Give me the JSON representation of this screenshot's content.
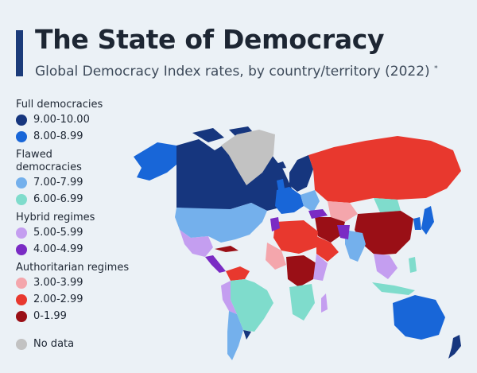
{
  "header": {
    "title": "The State of Democracy",
    "subtitle": "Global Democracy Index rates, by country/territory (2022)",
    "footnote_mark": "*"
  },
  "legend": {
    "groups": [
      {
        "title": "Full democracies",
        "items": [
          {
            "label": "9.00-10.00",
            "color": "#16367e"
          },
          {
            "label": "8.00-8.99",
            "color": "#1866d8"
          }
        ]
      },
      {
        "title": "Flawed democracies",
        "title_lines": [
          "Flawed",
          "democracies"
        ],
        "items": [
          {
            "label": "7.00-7.99",
            "color": "#74b0ec"
          },
          {
            "label": "6.00-6.99",
            "color": "#7fdccc"
          }
        ]
      },
      {
        "title": "Hybrid regimes",
        "items": [
          {
            "label": "5.00-5.99",
            "color": "#c49ef0"
          },
          {
            "label": "4.00-4.99",
            "color": "#7a2bc4"
          }
        ]
      },
      {
        "title": "Authoritarian regimes",
        "items": [
          {
            "label": "3.00-3.99",
            "color": "#f4a6ac"
          },
          {
            "label": "2.00-2.99",
            "color": "#e8382e"
          },
          {
            "label": "0-1.99",
            "color": "#9a0f16"
          }
        ]
      }
    ],
    "no_data": {
      "label": "No data",
      "color": "#c2c2c2"
    }
  },
  "colors": {
    "background": "#ebf1f6",
    "title_bar": "#1b3b7a"
  }
}
